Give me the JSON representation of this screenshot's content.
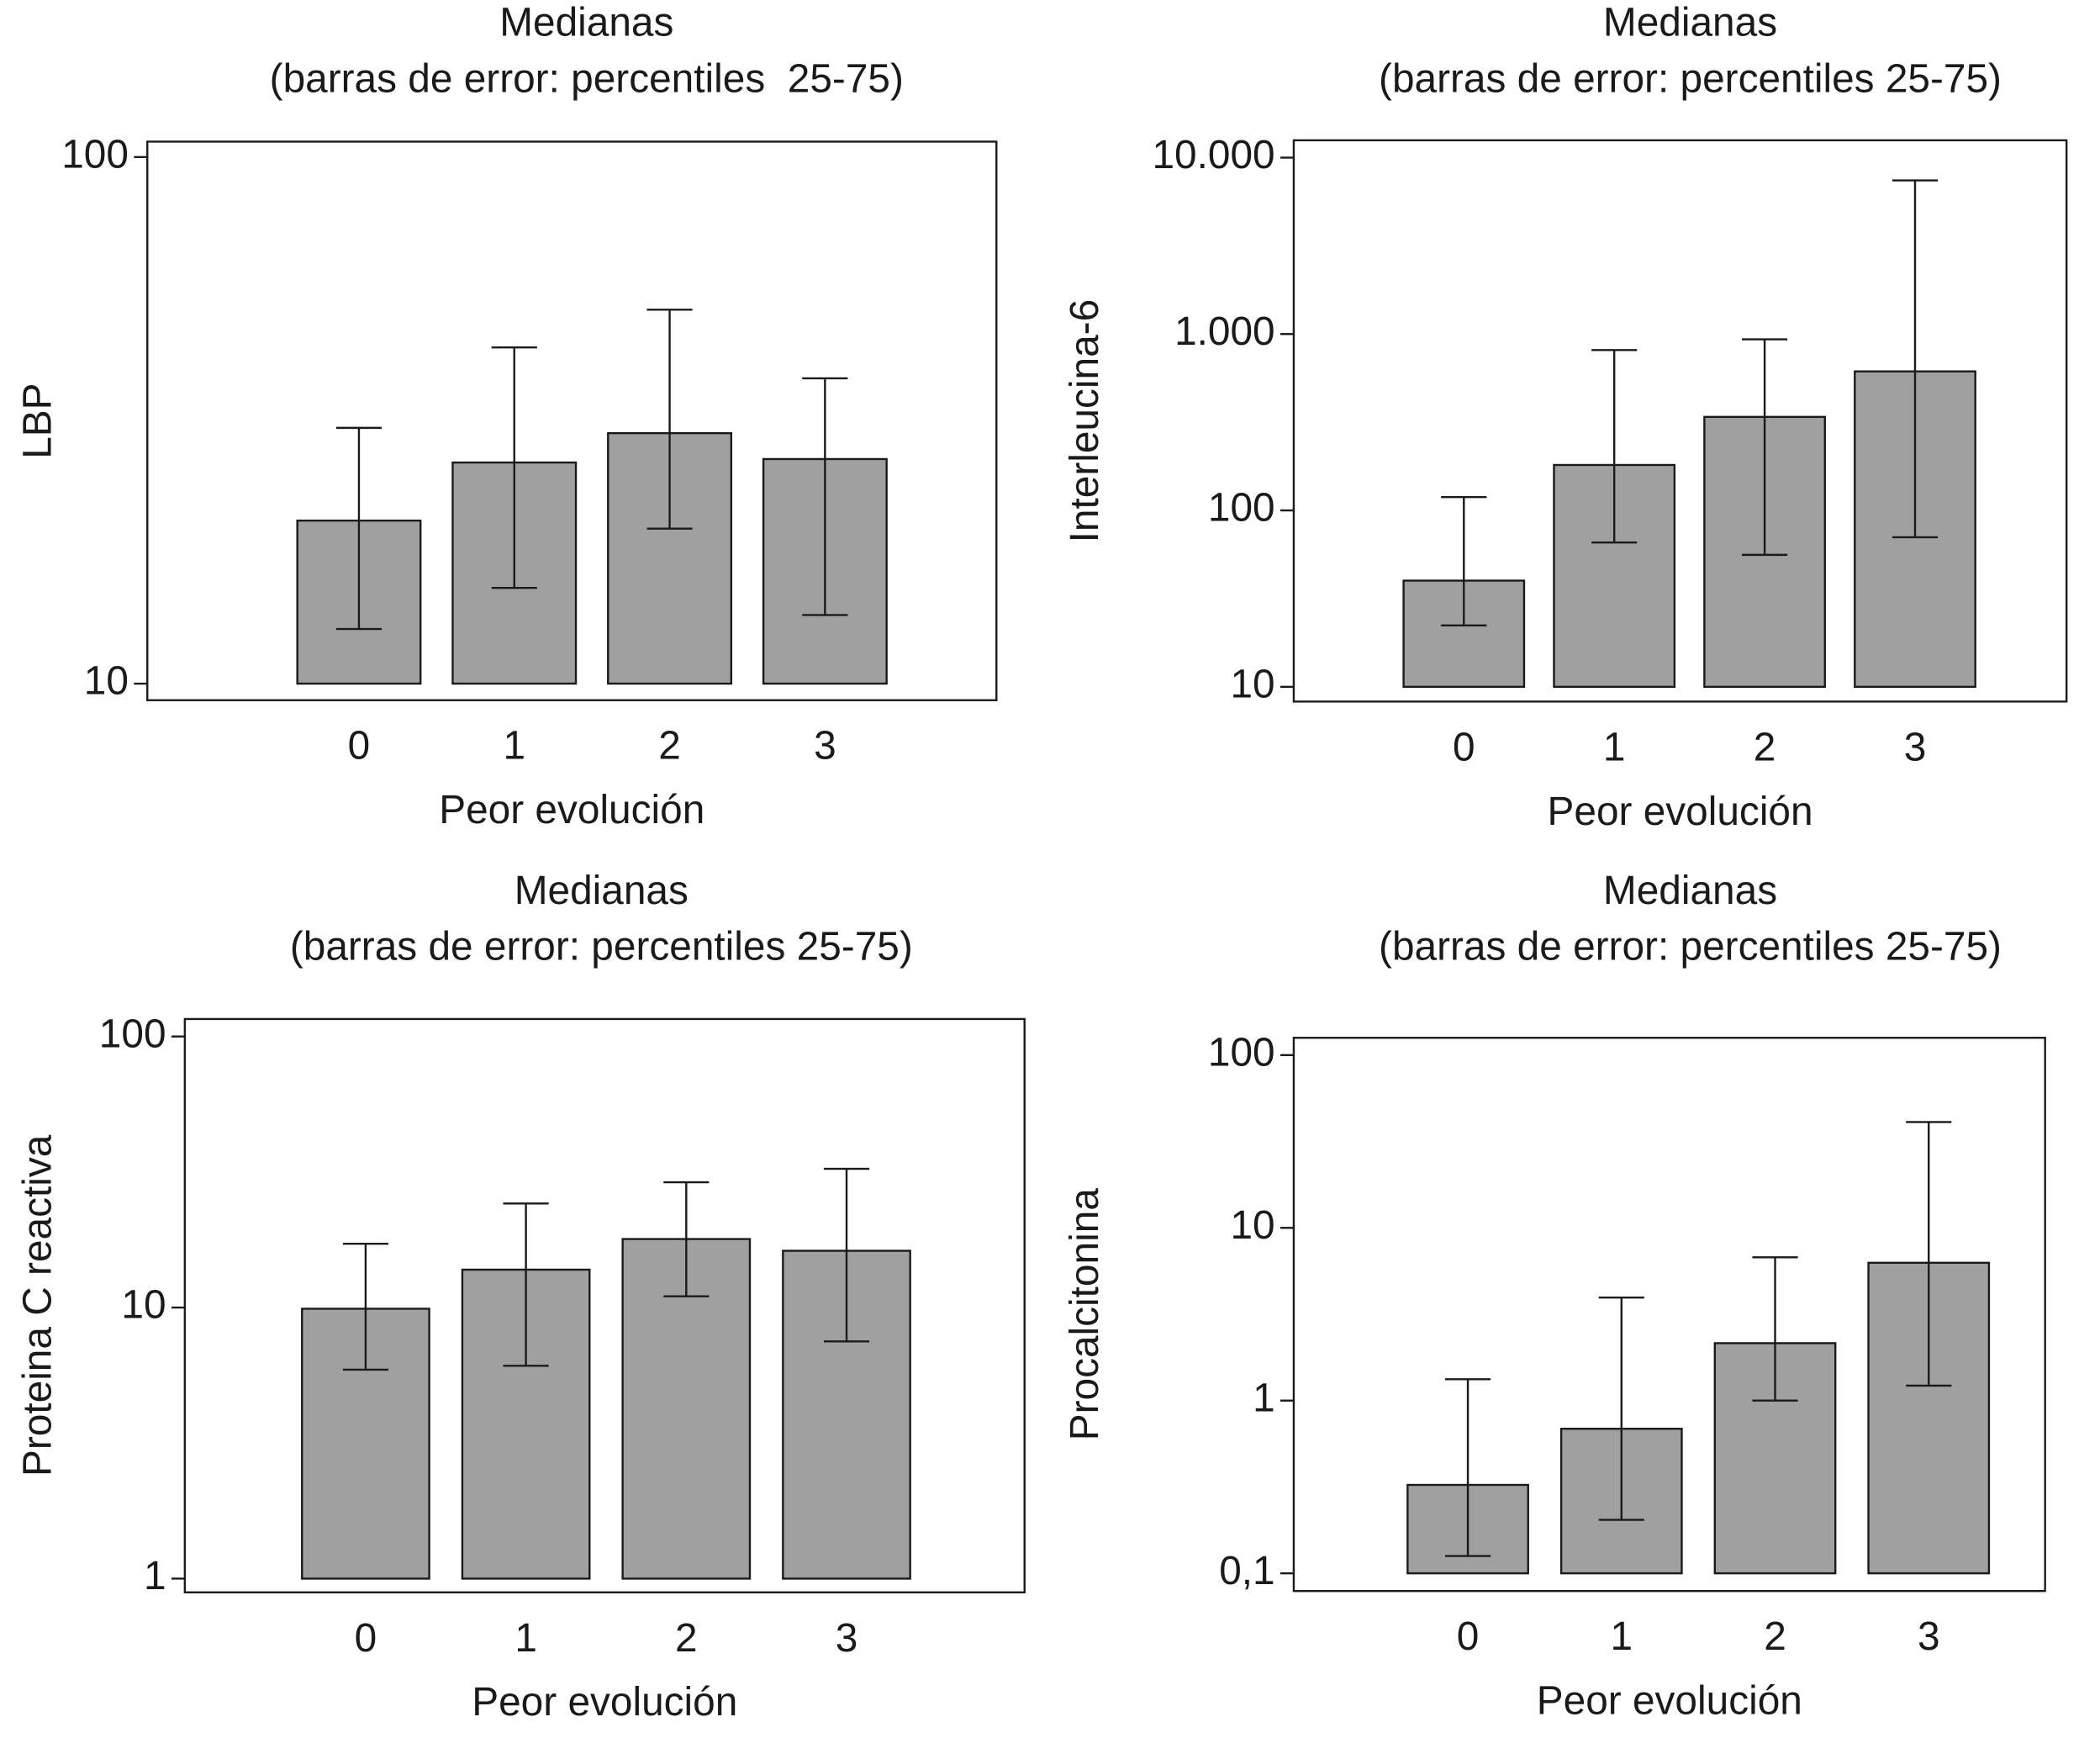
{
  "chart_data": [
    {
      "type": "bar",
      "title": "Medianas",
      "subtitle": "(barras de error: percentiles  25-75)",
      "ylabel": "LBP",
      "xlabel": "Peor evolución",
      "categories": [
        "0",
        "1",
        "2",
        "3"
      ],
      "values": [
        20.4,
        26.3,
        29.9,
        26.7
      ],
      "low": [
        12.7,
        15.2,
        19.7,
        13.5
      ],
      "high": [
        30.6,
        43.5,
        51.3,
        38.0
      ],
      "color": "#a0a0a0",
      "log": true,
      "ylim": [
        9.3,
        107
      ],
      "yticks": [
        10,
        100
      ]
    },
    {
      "type": "bar",
      "title": "Medianas",
      "subtitle": "(barras de error: percentiles 25-75)",
      "ylabel": "Interleucina-6",
      "xlabel": "Peor evolución",
      "categories": [
        "0",
        "1",
        "2",
        "3"
      ],
      "values": [
        40,
        181,
        339,
        614
      ],
      "low": [
        22.3,
        65.8,
        56,
        70.5
      ],
      "high": [
        119,
        811,
        933,
        7430
      ],
      "color": "#a0a0a0",
      "log": true,
      "ylim": [
        8.25,
        12540
      ],
      "yticks": [
        10,
        100,
        {
          "value": 1000,
          "label": "1.000"
        },
        {
          "value": 10000,
          "label": "10.000"
        }
      ]
    },
    {
      "type": "bar",
      "title": "Medianas",
      "subtitle": "(barras de error: percentiles 25-75)",
      "ylabel": "Proteina C reactiva",
      "xlabel": "Peor evolución",
      "categories": [
        "0",
        "1",
        "2",
        "3"
      ],
      "values": [
        9.9,
        13.8,
        17.9,
        16.2
      ],
      "low": [
        5.9,
        6.1,
        11,
        7.5
      ],
      "high": [
        17.2,
        24.2,
        29,
        32.5
      ],
      "color": "#a0a0a0",
      "log": true,
      "ylim": [
        0.89,
        116
      ],
      "yticks": [
        1,
        10,
        100
      ]
    },
    {
      "type": "bar",
      "title": "Medianas",
      "subtitle": "(barras de error: percentiles 25-75)",
      "ylabel": "Procalcitonina",
      "xlabel": "Peor evolución",
      "categories": [
        "0",
        "1",
        "2",
        "3"
      ],
      "values": [
        0.325,
        0.687,
        2.15,
        6.28
      ],
      "low": [
        0.126,
        0.204,
        1.0,
        1.22
      ],
      "high": [
        1.33,
        3.95,
        6.75,
        41
      ],
      "color": "#a0a0a0",
      "log": true,
      "ylim": [
        0.079,
        126
      ],
      "yticks": [
        {
          "value": 0.1,
          "label": "0,1"
        },
        1,
        10,
        100
      ]
    }
  ]
}
